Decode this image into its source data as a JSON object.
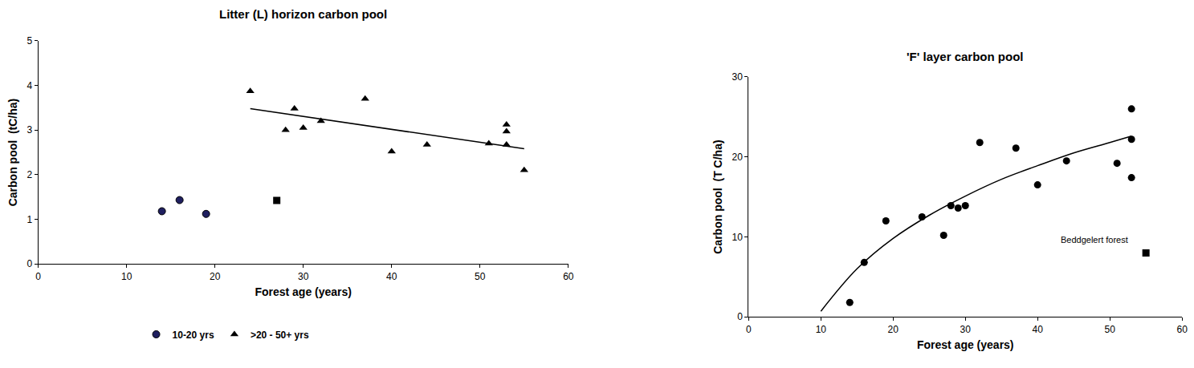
{
  "chart_data": [
    {
      "type": "scatter",
      "title": "Litter (L) horizon carbon pool",
      "x_label": "Forest age (years)",
      "y_label": "Carbon pool  (tC/ha)",
      "xlim": [
        0,
        60
      ],
      "xticks": [
        0,
        10,
        20,
        30,
        40,
        50,
        60
      ],
      "ylim": [
        0,
        5
      ],
      "yticks": [
        0,
        1,
        2,
        3,
        4,
        5
      ],
      "grid": false,
      "legend": "bottom",
      "series": [
        {
          "name": "10-20 yrs",
          "type": "scatter",
          "marker": "circle",
          "color": "#1f1f5f",
          "x": [
            14,
            16,
            19
          ],
          "values": [
            1.18,
            1.43,
            1.12
          ]
        },
        {
          "name": ">20 - 50+ yrs",
          "type": "scatter",
          "marker": "triangle",
          "color": "#000000",
          "x": [
            24,
            28,
            29,
            30,
            32,
            37,
            40,
            44,
            51,
            53,
            53,
            53,
            55
          ],
          "values": [
            3.87,
            3.0,
            3.48,
            3.05,
            3.2,
            3.7,
            2.52,
            2.67,
            2.7,
            3.12,
            2.97,
            2.67,
            2.1
          ]
        },
        {
          "type": "scatter",
          "marker": "square",
          "color": "#000000",
          "x": [
            27
          ],
          "values": [
            1.42
          ]
        },
        {
          "type": "line",
          "line_style": "solid",
          "color": "#000000",
          "x": [
            24,
            55
          ],
          "values": [
            3.48,
            2.58
          ]
        }
      ]
    },
    {
      "type": "scatter",
      "title": "'F' layer carbon pool",
      "x_label": "Forest age (years)",
      "y_label": "Carbon pool  (T C/ha)",
      "xlim": [
        0,
        60
      ],
      "xticks": [
        0,
        10,
        20,
        30,
        40,
        50,
        60
      ],
      "ylim": [
        0,
        30
      ],
      "yticks": [
        0,
        10,
        20,
        30
      ],
      "grid": false,
      "series": [
        {
          "type": "scatter",
          "marker": "circle",
          "color": "#000000",
          "x": [
            14,
            16,
            19,
            24,
            27,
            28,
            29,
            30,
            32,
            37,
            40,
            44,
            51,
            53,
            53,
            53
          ],
          "values": [
            1.8,
            6.8,
            12,
            12.5,
            10.2,
            13.9,
            13.6,
            13.9,
            21.8,
            21.1,
            16.5,
            19.5,
            19.2,
            26,
            22.2,
            17.4
          ]
        },
        {
          "type": "scatter",
          "marker": "square",
          "color": "#000000",
          "x": [
            55
          ],
          "values": [
            8
          ]
        },
        {
          "type": "line",
          "line_style": "solid",
          "color": "#000000",
          "x": [
            10,
            15,
            20,
            25,
            30,
            35,
            40,
            45,
            50,
            53
          ],
          "values": [
            0.7,
            6.0,
            9.8,
            12.7,
            15.1,
            17.2,
            18.9,
            20.5,
            21.8,
            22.6
          ]
        }
      ],
      "annotations": [
        {
          "text": "Beddgelert forest",
          "x": 55,
          "y": 8
        }
      ]
    }
  ]
}
